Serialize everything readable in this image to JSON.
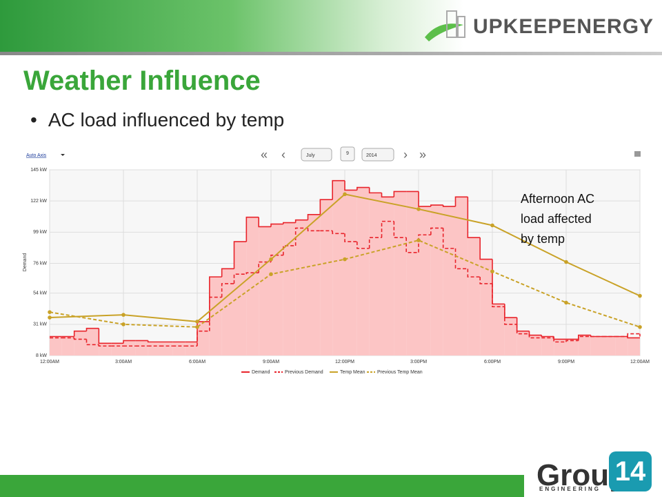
{
  "slide": {
    "title": "Weather Influence",
    "bullet": "AC load influenced by temp",
    "annotation": "Afternoon AC load affected by temp",
    "brand": "UPKEEPENERGY",
    "footer_logo": {
      "name": "Group",
      "number": "14",
      "tagline": "ENGINEERING"
    }
  },
  "toolbar": {
    "axis_mode": "Auto Axis",
    "month": "July",
    "day": 9,
    "year": 2014
  },
  "chart_data": {
    "type": "line",
    "y_label": "Demand",
    "xlim": [
      0,
      24
    ],
    "xticks": [
      {
        "value": 0,
        "label": "12:00AM"
      },
      {
        "value": 3,
        "label": "3:00AM"
      },
      {
        "value": 6,
        "label": "6:00AM"
      },
      {
        "value": 9,
        "label": "9:00AM"
      },
      {
        "value": 12,
        "label": "12:00PM"
      },
      {
        "value": 15,
        "label": "3:00PM"
      },
      {
        "value": 18,
        "label": "6:00PM"
      },
      {
        "value": 21,
        "label": "9:00PM"
      },
      {
        "value": 24,
        "label": "12:00AM"
      }
    ],
    "ylim": [
      8,
      145
    ],
    "yticks": [
      {
        "value": 8,
        "label": "8 kW"
      },
      {
        "value": 31,
        "label": "31 kW"
      },
      {
        "value": 54,
        "label": "54 kW"
      },
      {
        "value": 76,
        "label": "76 kW"
      },
      {
        "value": 99,
        "label": "99 kW"
      },
      {
        "value": 122,
        "label": "122 kW"
      },
      {
        "value": 145,
        "label": "145 kW"
      }
    ],
    "grid": true,
    "legend": "bottom",
    "series": [
      {
        "name": "Demand",
        "color": "#e8232a",
        "line_style": "solid",
        "step": true,
        "area_color": "#fcc5c5",
        "x": [
          0,
          0.5,
          1,
          1.5,
          2,
          2.5,
          3,
          3.5,
          4,
          4.5,
          5,
          5.5,
          6,
          6.5,
          7,
          7.5,
          8,
          8.5,
          9,
          9.5,
          10,
          10.5,
          11,
          11.5,
          12,
          12.5,
          13,
          13.5,
          14,
          14.5,
          15,
          15.5,
          16,
          16.5,
          17,
          17.5,
          18,
          18.5,
          19,
          19.5,
          20,
          20.5,
          21,
          21.5,
          22,
          22.5,
          23,
          23.5,
          24
        ],
        "values": [
          22,
          22,
          26,
          28,
          17,
          17,
          19,
          19,
          18,
          18,
          18,
          18,
          33,
          66,
          72,
          92,
          110,
          103,
          105,
          106,
          108,
          112,
          123,
          137,
          130,
          132,
          128,
          125,
          129,
          129,
          118,
          119,
          118,
          125,
          95,
          79,
          46,
          36,
          26,
          23,
          22,
          20,
          20,
          23,
          22,
          22,
          22,
          21,
          21
        ]
      },
      {
        "name": "Previous Demand",
        "color": "#e8232a",
        "line_style": "dashed",
        "step": true,
        "x": [
          0,
          0.5,
          1,
          1.5,
          2,
          2.5,
          3,
          3.5,
          4,
          4.5,
          5,
          5.5,
          6,
          6.5,
          7,
          7.5,
          8,
          8.5,
          9,
          9.5,
          10,
          10.5,
          11,
          11.5,
          12,
          12.5,
          13,
          13.5,
          14,
          14.5,
          15,
          15.5,
          16,
          16.5,
          17,
          17.5,
          18,
          18.5,
          19,
          19.5,
          20,
          20.5,
          21,
          21.5,
          22,
          22.5,
          23,
          23.5,
          24
        ],
        "values": [
          21,
          21,
          20,
          16,
          15,
          15,
          15,
          15,
          15,
          15,
          15,
          15,
          26,
          51,
          61,
          68,
          69,
          77,
          82,
          89,
          102,
          100,
          100,
          98,
          92,
          87,
          95,
          107,
          95,
          84,
          97,
          102,
          87,
          72,
          66,
          61,
          44,
          31,
          24,
          21,
          21,
          18,
          19,
          22,
          22,
          22,
          22,
          24,
          22
        ]
      },
      {
        "name": "Temp Mean",
        "color": "#c9a227",
        "line_style": "solid",
        "step": false,
        "x": [
          0,
          3,
          6,
          9,
          12,
          15,
          18,
          21,
          24
        ],
        "values": [
          36,
          38,
          33,
          79,
          127,
          116,
          104,
          77,
          52
        ]
      },
      {
        "name": "Previous Temp Mean",
        "color": "#c9a227",
        "line_style": "dashed",
        "step": false,
        "x": [
          0,
          3,
          6,
          9,
          12,
          15,
          18,
          21,
          24
        ],
        "values": [
          40,
          31,
          29,
          68,
          79,
          93,
          70,
          47,
          29
        ]
      }
    ]
  }
}
